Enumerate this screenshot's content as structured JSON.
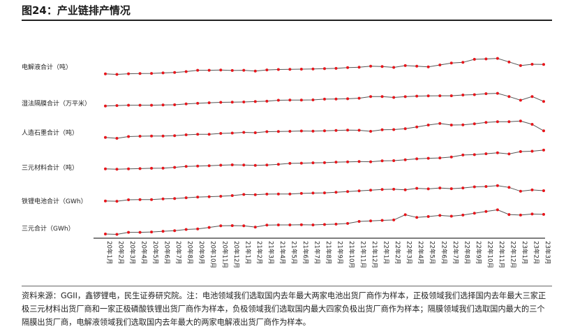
{
  "header": {
    "title": "图24：产业链排产情况"
  },
  "source_note": "资料来源：GGII，鑫锣锂电，民生证券研究院。注：电池领域我们选取国内去年最大两家电池出货厂商作为样本，正极领域我们选择国内去年最大三家正极三元材料出货厂商和一家正极磷酸铁锂出货厂商作为样本，负极领域我们选取国内最大四家负极出货厂商作为样本；隔膜领域我们选取国内最大的三个隔膜出货厂商，电解液领域我们选取国内去年最大的两家电解液出货厂商作为样本。",
  "colors": {
    "line": "#555555",
    "marker": "#e8151b"
  },
  "chart_data": {
    "type": "line",
    "x": [
      "20年1月",
      "20年2月",
      "20年3月",
      "20年4月",
      "20年5月",
      "20年6月",
      "20年7月",
      "20年8月",
      "20年9月",
      "20年10月",
      "20年11月",
      "20年12月",
      "21年1月",
      "21年2月",
      "21年3月",
      "21年4月",
      "21年5月",
      "21年6月",
      "21年7月",
      "21年8月",
      "21年9月",
      "21年10月",
      "21年11月",
      "21年12月",
      "22年1月",
      "22年2月",
      "22年3月",
      "22年4月",
      "22年5月",
      "22年6月",
      "22年7月",
      "22年8月",
      "22年9月",
      "22年10月",
      "22年11月",
      "22年12月",
      "23年1月",
      "23年2月",
      "23年3月"
    ],
    "series": [
      {
        "name": "电解液合计（吨）",
        "values": [
          0.1,
          -0.2,
          0.15,
          0.3,
          0.35,
          0.6,
          0.8,
          1.3,
          2.0,
          2.0,
          2.1,
          1.9,
          2.0,
          1.6,
          2.2,
          2.4,
          2.5,
          2.6,
          2.7,
          2.9,
          3.0,
          3.4,
          3.6,
          4.2,
          4.0,
          3.5,
          4.5,
          4.2,
          3.8,
          4.8,
          5.8,
          6.2,
          7.8,
          8.0,
          8.3,
          6.4,
          4.5,
          5.2,
          5.1
        ]
      },
      {
        "name": "湿法隔膜合计（万平米）",
        "values": [
          0.5,
          0.7,
          0.9,
          0.9,
          0.9,
          1.0,
          1.1,
          1.6,
          1.9,
          2.2,
          2.4,
          2.5,
          2.6,
          2.8,
          3.0,
          3.5,
          3.6,
          3.6,
          3.7,
          4.1,
          4.2,
          4.3,
          4.6,
          5.5,
          5.5,
          5.0,
          5.4,
          5.7,
          5.8,
          5.9,
          5.9,
          6.3,
          6.5,
          7.0,
          7.2,
          5.5,
          3.5,
          5.5,
          2.9
        ]
      },
      {
        "name": "人造石墨合计（吨）",
        "values": [
          0.5,
          0.0,
          1.0,
          1.2,
          1.3,
          1.3,
          1.5,
          2.0,
          2.3,
          2.3,
          2.8,
          3.0,
          3.4,
          3.2,
          3.8,
          3.9,
          4.0,
          4.2,
          4.1,
          4.3,
          4.5,
          4.7,
          4.6,
          4.0,
          4.9,
          5.0,
          5.5,
          6.5,
          7.6,
          8.5,
          7.6,
          7.7,
          8.3,
          9.1,
          9.5,
          9.5,
          9.9,
          8.0,
          4.3
        ]
      },
      {
        "name": "三元材料合计（吨）",
        "values": [
          0.5,
          0.3,
          0.5,
          0.6,
          0.8,
          0.9,
          1.3,
          1.8,
          2.0,
          2.2,
          2.5,
          2.7,
          2.6,
          2.4,
          2.6,
          3.0,
          3.5,
          3.6,
          3.8,
          3.9,
          4.2,
          4.3,
          4.5,
          4.4,
          4.9,
          5.0,
          5.5,
          6.0,
          6.3,
          6.5,
          7.0,
          8.1,
          8.3,
          8.8,
          9.3,
          8.7,
          10.0,
          10.2,
          10.8
        ]
      },
      {
        "name": "铁锂电池合计（GWh）",
        "values": [
          2.0,
          1.9,
          2.7,
          2.8,
          2.8,
          3.2,
          3.4,
          3.8,
          4.2,
          4.4,
          4.6,
          5.0,
          5.6,
          5.5,
          5.8,
          5.9,
          5.9,
          6.2,
          6.4,
          6.5,
          6.8,
          7.2,
          7.6,
          8.0,
          8.4,
          8.5,
          8.2,
          9.0,
          8.7,
          9.2,
          8.8,
          9.2,
          9.8,
          10.0,
          10.5,
          9.5,
          7.4,
          8.1,
          7.7
        ]
      },
      {
        "name": "三元合计（GWh）",
        "values": [
          0.4,
          0.2,
          1.3,
          1.3,
          1.5,
          1.9,
          2.2,
          2.9,
          3.2,
          4.0,
          4.9,
          5.0,
          4.9,
          4.2,
          5.3,
          5.4,
          5.4,
          5.5,
          5.4,
          5.6,
          5.8,
          6.2,
          7.3,
          7.6,
          7.9,
          8.1,
          11.0,
          9.5,
          10.0,
          10.6,
          10.2,
          10.8,
          11.8,
          12.8,
          13.7,
          11.1,
          10.8,
          11.4,
          11.2
        ]
      }
    ],
    "x_tick_labels": [
      "20年1月",
      "20年2月",
      "20年3月",
      "20年4月",
      "20年5月",
      "20年6月",
      "20年7月",
      "20年8月",
      "20年9月",
      "20年10月",
      "20年11月",
      "20年12月",
      "21年1月",
      "21年2月",
      "21年3月",
      "21年4月",
      "21年5月",
      "21年6月",
      "21年7月",
      "21年8月",
      "21年9月",
      "21年10月",
      "21年11月",
      "21年12月",
      "22年1月",
      "22年2月",
      "22年3月",
      "22年4月",
      "22年5月",
      "22年6月",
      "22年7月",
      "22年8月",
      "22年9月",
      "22年10月",
      "22年11月",
      "22年12月",
      "23年1月",
      "23年2月",
      "23年3月"
    ],
    "grid": false,
    "legend": "labels-left"
  }
}
